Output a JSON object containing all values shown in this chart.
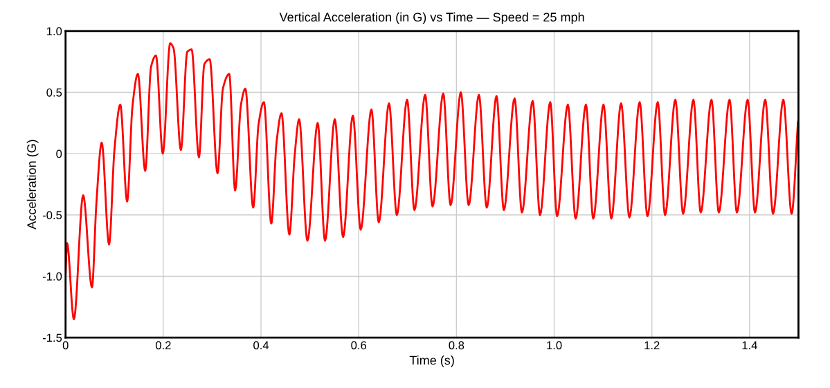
{
  "chart_data": {
    "type": "line",
    "title": "Vertical Acceleration (in G) vs Time — Speed = 25 mph",
    "xlabel": "Time (s)",
    "ylabel": "Acceleration (G)",
    "xlim": [
      0,
      1.5
    ],
    "xticks": [
      0,
      0.2,
      0.4,
      0.6,
      0.8,
      {
        "value": 1,
        "label": "1.0"
      },
      1.2,
      1.4
    ],
    "ylim": [
      -1.5,
      1.0
    ],
    "yticks": [
      -1.5,
      {
        "value": -1,
        "label": "-1.0"
      },
      -0.5,
      0,
      0.5,
      {
        "value": 1,
        "label": "1.0"
      }
    ],
    "grid": true,
    "marker": "none",
    "line_style": "solid",
    "series": [
      {
        "color": "#ff0000",
        "x": [
          0,
          0.003,
          0.017,
          0.036,
          0.054,
          0.063,
          0.074,
          0.089,
          0.1,
          0.112,
          0.126,
          0.137,
          0.148,
          0.163,
          0.175,
          0.185,
          0.199,
          0.214,
          0.221,
          0.236,
          0.249,
          0.258,
          0.273,
          0.284,
          0.295,
          0.311,
          0.322,
          0.335,
          0.347,
          0.359,
          0.368,
          0.384,
          0.395,
          0.406,
          0.421,
          0.432,
          0.442,
          0.458,
          0.469,
          0.478,
          0.495,
          0.516,
          0.531,
          0.551,
          0.568,
          0.588,
          0.604,
          0.626,
          0.641,
          0.662,
          0.678,
          0.699,
          0.714,
          0.736,
          0.751,
          0.773,
          0.788,
          0.809,
          0.825,
          0.846,
          0.862,
          0.882,
          0.897,
          0.919,
          0.934,
          0.956,
          0.971,
          0.992,
          1.006,
          1.028,
          1.044,
          1.065,
          1.08,
          1.101,
          1.117,
          1.137,
          1.154,
          1.175,
          1.191,
          1.212,
          1.227,
          1.248,
          1.264,
          1.285,
          1.3,
          1.322,
          1.337,
          1.359,
          1.374,
          1.396,
          1.411,
          1.432,
          1.448,
          1.469,
          1.486,
          1.499
        ],
        "values": [
          -0.99,
          -0.73,
          -1.35,
          -0.34,
          -1.09,
          -0.41,
          0.09,
          -0.74,
          0.03,
          0.4,
          -0.39,
          0.39,
          0.65,
          -0.14,
          0.71,
          0.8,
          0.0,
          0.9,
          0.86,
          0.03,
          0.83,
          0.85,
          -0.03,
          0.73,
          0.77,
          -0.16,
          0.53,
          0.65,
          -0.3,
          0.4,
          0.53,
          -0.44,
          0.24,
          0.42,
          -0.57,
          0.1,
          0.33,
          -0.66,
          -0.01,
          0.28,
          -0.71,
          0.25,
          -0.71,
          0.28,
          -0.68,
          0.31,
          -0.62,
          0.36,
          -0.56,
          0.41,
          -0.5,
          0.44,
          -0.46,
          0.48,
          -0.43,
          0.49,
          -0.42,
          0.5,
          -0.42,
          0.48,
          -0.44,
          0.47,
          -0.46,
          0.45,
          -0.48,
          0.43,
          -0.5,
          0.42,
          -0.51,
          0.4,
          -0.53,
          0.4,
          -0.53,
          0.4,
          -0.53,
          0.41,
          -0.52,
          0.42,
          -0.51,
          0.42,
          -0.5,
          0.44,
          -0.49,
          0.44,
          -0.48,
          0.44,
          -0.48,
          0.44,
          -0.48,
          0.44,
          -0.48,
          0.44,
          -0.49,
          0.44,
          -0.49,
          0.26
        ]
      }
    ]
  }
}
